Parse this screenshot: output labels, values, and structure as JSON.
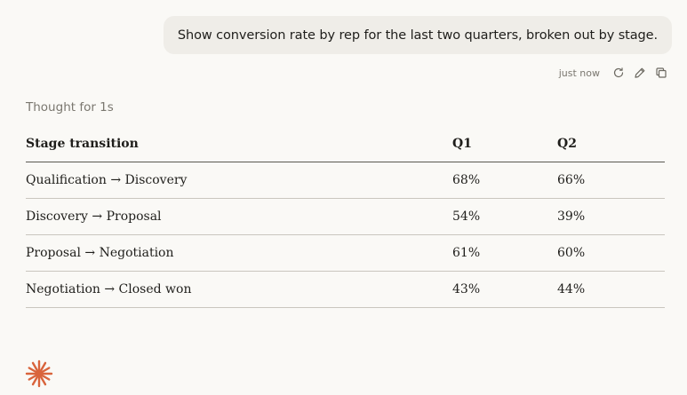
{
  "chat": {
    "user_message": "Show conversion rate by rep for the last two quarters, broken out by stage.",
    "timestamp": "just now",
    "thought_label": "Thought for 1s"
  },
  "table": {
    "headers": [
      "Stage transition",
      "Q1",
      "Q2"
    ],
    "rows": [
      [
        "Qualification → Discovery",
        "68%",
        "66%"
      ],
      [
        "Discovery → Proposal",
        "54%",
        "39%"
      ],
      [
        "Proposal → Negotiation",
        "61%",
        "60%"
      ],
      [
        "Negotiation → Closed won",
        "43%",
        "44%"
      ]
    ]
  },
  "icons": {
    "retry": "retry-icon",
    "edit": "pencil-icon",
    "copy": "copy-icon",
    "logo": "spark-logo-icon"
  },
  "colors": {
    "background": "#faf9f6",
    "user_bubble": "#efede8",
    "brand_accent": "#d9643c",
    "muted_text": "#7a776f"
  }
}
